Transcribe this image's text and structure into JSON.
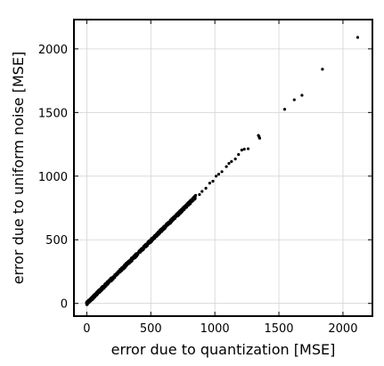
{
  "chart_data": {
    "type": "scatter",
    "title": "",
    "xlabel": "error due to quantization [MSE]",
    "ylabel": "error due to uniform noise [MSE]",
    "xlim": [
      -100,
      2230
    ],
    "ylim": [
      -100,
      2230
    ],
    "xticks": [
      0,
      500,
      1000,
      1500,
      2000
    ],
    "yticks": [
      0,
      500,
      1000,
      1500,
      2000
    ],
    "grid": true,
    "marker_color": "#000000",
    "series": [
      {
        "dense_band": {
          "x_range": [
            0,
            850
          ],
          "slope": 0.985,
          "spread": 12
        },
        "points": [
          {
            "x": 880,
            "y": 855
          },
          {
            "x": 900,
            "y": 880
          },
          {
            "x": 930,
            "y": 905
          },
          {
            "x": 960,
            "y": 945
          },
          {
            "x": 985,
            "y": 960
          },
          {
            "x": 1010,
            "y": 1000
          },
          {
            "x": 1030,
            "y": 1015
          },
          {
            "x": 1055,
            "y": 1035
          },
          {
            "x": 1090,
            "y": 1075
          },
          {
            "x": 1110,
            "y": 1100
          },
          {
            "x": 1130,
            "y": 1115
          },
          {
            "x": 1160,
            "y": 1135
          },
          {
            "x": 1185,
            "y": 1170
          },
          {
            "x": 1210,
            "y": 1205
          },
          {
            "x": 1230,
            "y": 1212
          },
          {
            "x": 1260,
            "y": 1215
          },
          {
            "x": 1340,
            "y": 1320
          },
          {
            "x": 1345,
            "y": 1310
          },
          {
            "x": 1350,
            "y": 1298
          },
          {
            "x": 1545,
            "y": 1525
          },
          {
            "x": 1620,
            "y": 1600
          },
          {
            "x": 1680,
            "y": 1635
          },
          {
            "x": 1840,
            "y": 1840
          },
          {
            "x": 2115,
            "y": 2090
          }
        ]
      }
    ]
  }
}
